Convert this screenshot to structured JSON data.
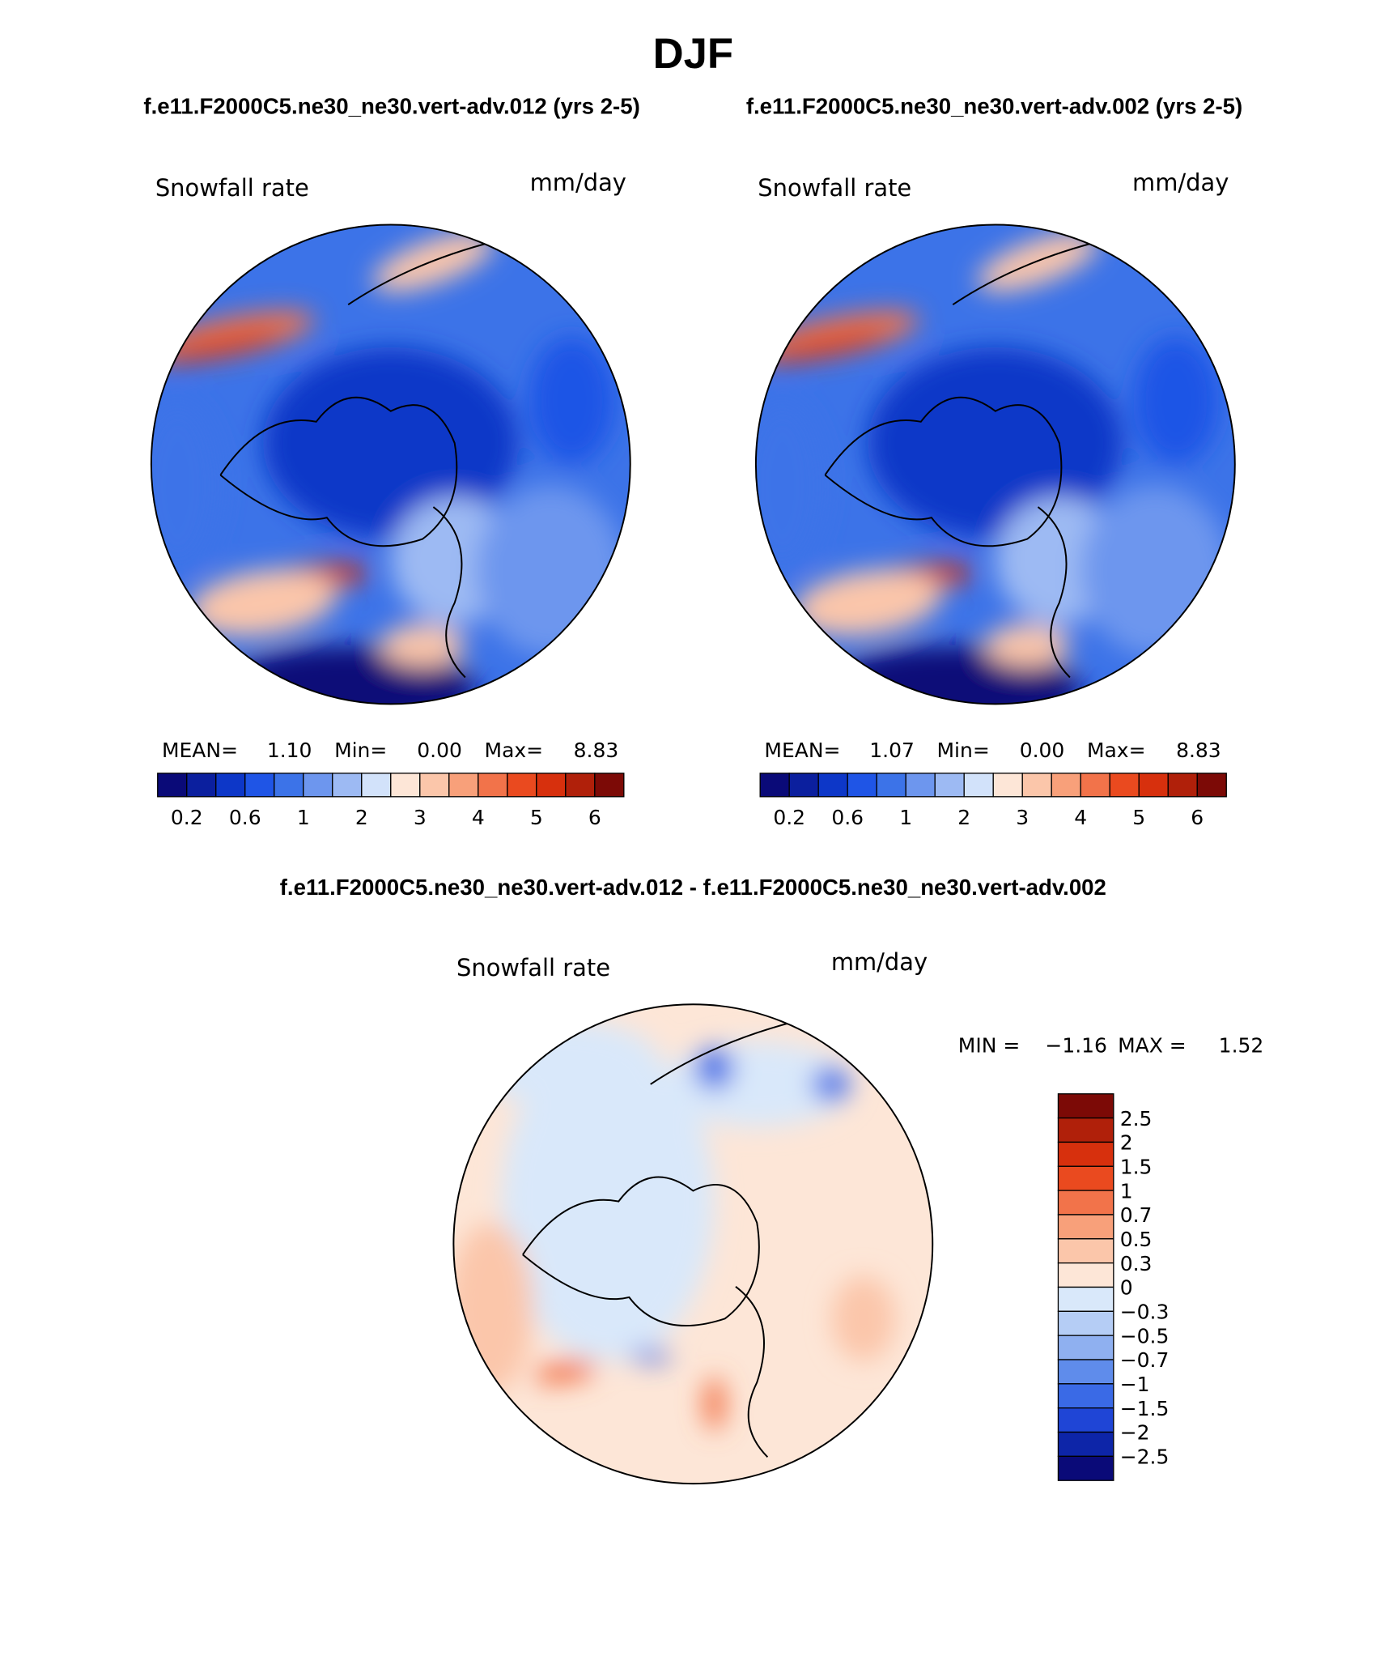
{
  "title": "DJF",
  "case_titles": [
    "f.e11.F2000C5.ne30_ne30.vert-adv.012 (yrs 2-5)",
    "f.e11.F2000C5.ne30_ne30.vert-adv.002 (yrs 2-5)"
  ],
  "panels": [
    {
      "label": "Snowfall rate",
      "units": "mm/day",
      "stats": [
        {
          "label": "MEAN=",
          "value": "1.10"
        },
        {
          "label": "Min=",
          "value": "0.00"
        },
        {
          "label": "Max=",
          "value": "8.83"
        }
      ]
    },
    {
      "label": "Snowfall rate",
      "units": "mm/day",
      "stats": [
        {
          "label": "MEAN=",
          "value": "1.07"
        },
        {
          "label": "Min=",
          "value": "0.00"
        },
        {
          "label": "Max=",
          "value": "8.83"
        }
      ]
    }
  ],
  "colorbar": {
    "colors": [
      "#0a0a78",
      "#0b1f9e",
      "#0d37c8",
      "#1f55e6",
      "#3c73e8",
      "#6d96ee",
      "#9dbaf3",
      "#d2e2fa",
      "#fde6d7",
      "#fbc6aa",
      "#f8a07a",
      "#f2734a",
      "#ea4a1f",
      "#d7300d",
      "#b0200a",
      "#7c0a06"
    ],
    "labels": [
      "0.2",
      "0.6",
      "1",
      "2",
      "3",
      "4",
      "5",
      "6"
    ]
  },
  "diff_title": "f.e11.F2000C5.ne30_ne30.vert-adv.012 - f.e11.F2000C5.ne30_ne30.vert-adv.002",
  "diff_panel": {
    "label": "Snowfall rate",
    "units": "mm/day",
    "min_label": "MIN =",
    "min": "−1.16",
    "max_label": "MAX =",
    "max": "1.52"
  },
  "diff_colorbar": {
    "colors": [
      "#7c0a06",
      "#b0200a",
      "#d7300d",
      "#ea4a1f",
      "#f2734a",
      "#f8a07a",
      "#fbc6aa",
      "#fde6d7",
      "#d9e8fa",
      "#b5cdf5",
      "#8fb0f0",
      "#5f8ceb",
      "#3a6ae6",
      "#1f45d6",
      "#0d25a8",
      "#0a0a78"
    ],
    "labels": [
      "2.5",
      "2",
      "1.5",
      "1",
      "0.7",
      "0.5",
      "0.3",
      "0",
      "−0.3",
      "−0.5",
      "−0.7",
      "−1",
      "−1.5",
      "−2",
      "−2.5"
    ]
  }
}
